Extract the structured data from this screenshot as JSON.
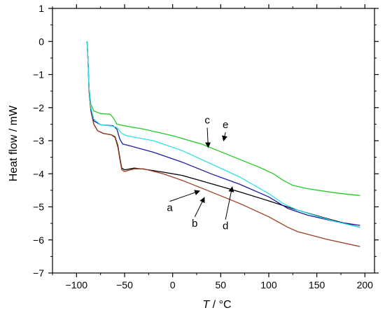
{
  "chart_data": {
    "type": "line",
    "title": "",
    "xlabel_var": "T",
    "xlabel_unit": " / °C",
    "ylabel": "Heat flow / mW",
    "xlim": [
      -125,
      210
    ],
    "ylim": [
      -7,
      1
    ],
    "x_ticks": [
      -100,
      -50,
      0,
      50,
      100,
      150,
      200
    ],
    "y_ticks": [
      -7,
      -6,
      -5,
      -4,
      -3,
      -2,
      -1,
      0,
      1
    ],
    "x_tick_labels": [
      "−100",
      "−50",
      "0",
      "50",
      "100",
      "150",
      "200"
    ],
    "y_tick_labels": [
      "−7",
      "−6",
      "−5",
      "−4",
      "−3",
      "−2",
      "−1",
      "0",
      "1"
    ],
    "grid": false,
    "series": [
      {
        "label": "a",
        "color": "#000000",
        "points": [
          [
            -89,
            0.0
          ],
          [
            -88,
            -0.6
          ],
          [
            -87,
            -1.5
          ],
          [
            -85,
            -2.1
          ],
          [
            -82,
            -2.5
          ],
          [
            -78,
            -2.7
          ],
          [
            -72,
            -2.78
          ],
          [
            -64,
            -2.82
          ],
          [
            -60,
            -2.88
          ],
          [
            -57,
            -3.15
          ],
          [
            -55,
            -3.5
          ],
          [
            -53,
            -3.83
          ],
          [
            -50,
            -3.88
          ],
          [
            -40,
            -3.83
          ],
          [
            -30,
            -3.86
          ],
          [
            -10,
            -3.95
          ],
          [
            10,
            -4.05
          ],
          [
            40,
            -4.3
          ],
          [
            70,
            -4.55
          ],
          [
            100,
            -4.82
          ],
          [
            130,
            -5.1
          ],
          [
            160,
            -5.35
          ],
          [
            195,
            -5.62
          ]
        ]
      },
      {
        "label": "b",
        "color": "#9b3d1e",
        "points": [
          [
            -89,
            0.0
          ],
          [
            -88,
            -0.6
          ],
          [
            -87,
            -1.5
          ],
          [
            -85,
            -2.1
          ],
          [
            -82,
            -2.5
          ],
          [
            -78,
            -2.7
          ],
          [
            -72,
            -2.78
          ],
          [
            -64,
            -2.82
          ],
          [
            -60,
            -2.9
          ],
          [
            -57,
            -3.2
          ],
          [
            -55,
            -3.55
          ],
          [
            -53,
            -3.88
          ],
          [
            -50,
            -3.93
          ],
          [
            -40,
            -3.85
          ],
          [
            -30,
            -3.85
          ],
          [
            -10,
            -4.0
          ],
          [
            10,
            -4.2
          ],
          [
            40,
            -4.55
          ],
          [
            70,
            -4.9
          ],
          [
            100,
            -5.3
          ],
          [
            120,
            -5.62
          ],
          [
            130,
            -5.75
          ],
          [
            160,
            -5.98
          ],
          [
            195,
            -6.2
          ]
        ]
      },
      {
        "label": "c",
        "color": "#22cc22",
        "points": [
          [
            -89,
            0.0
          ],
          [
            -88,
            -0.6
          ],
          [
            -87,
            -1.4
          ],
          [
            -85,
            -1.9
          ],
          [
            -82,
            -2.1
          ],
          [
            -75,
            -2.18
          ],
          [
            -65,
            -2.2
          ],
          [
            -62,
            -2.3
          ],
          [
            -58,
            -2.5
          ],
          [
            -50,
            -2.55
          ],
          [
            -30,
            -2.65
          ],
          [
            0,
            -2.85
          ],
          [
            30,
            -3.1
          ],
          [
            60,
            -3.45
          ],
          [
            90,
            -3.8
          ],
          [
            105,
            -4.0
          ],
          [
            115,
            -4.2
          ],
          [
            125,
            -4.35
          ],
          [
            140,
            -4.45
          ],
          [
            170,
            -4.58
          ],
          [
            195,
            -4.66
          ]
        ]
      },
      {
        "label": "d",
        "color": "#1a1aa8",
        "points": [
          [
            -89,
            0.0
          ],
          [
            -88,
            -0.6
          ],
          [
            -87,
            -1.4
          ],
          [
            -85,
            -2.05
          ],
          [
            -82,
            -2.4
          ],
          [
            -75,
            -2.52
          ],
          [
            -62,
            -2.55
          ],
          [
            -58,
            -2.65
          ],
          [
            -55,
            -2.95
          ],
          [
            -52,
            -3.1
          ],
          [
            -45,
            -3.15
          ],
          [
            -20,
            -3.35
          ],
          [
            10,
            -3.65
          ],
          [
            40,
            -4.0
          ],
          [
            70,
            -4.32
          ],
          [
            100,
            -4.7
          ],
          [
            120,
            -5.05
          ],
          [
            140,
            -5.25
          ],
          [
            170,
            -5.45
          ],
          [
            195,
            -5.56
          ]
        ]
      },
      {
        "label": "e",
        "color": "#33e0e8",
        "points": [
          [
            -89,
            0.0
          ],
          [
            -88,
            -0.6
          ],
          [
            -87,
            -1.4
          ],
          [
            -85,
            -2.0
          ],
          [
            -82,
            -2.35
          ],
          [
            -75,
            -2.52
          ],
          [
            -63,
            -2.56
          ],
          [
            -58,
            -2.6
          ],
          [
            -53,
            -2.78
          ],
          [
            -48,
            -2.85
          ],
          [
            -20,
            -3.0
          ],
          [
            10,
            -3.3
          ],
          [
            40,
            -3.7
          ],
          [
            70,
            -4.1
          ],
          [
            100,
            -4.6
          ],
          [
            115,
            -4.9
          ],
          [
            130,
            -5.1
          ],
          [
            150,
            -5.28
          ],
          [
            170,
            -5.45
          ],
          [
            195,
            -5.62
          ]
        ]
      }
    ],
    "annotations": [
      {
        "text": "a",
        "tip": [
          28,
          -4.52
        ],
        "label": [
          -3,
          -5.13
        ]
      },
      {
        "text": "b",
        "tip": [
          33,
          -4.72
        ],
        "label": [
          23,
          -5.6
        ]
      },
      {
        "text": "c",
        "tip": [
          37,
          -3.2
        ],
        "label": [
          36,
          -2.48
        ]
      },
      {
        "text": "d",
        "tip": [
          62,
          -4.4
        ],
        "label": [
          55,
          -5.68
        ]
      },
      {
        "text": "e",
        "tip": [
          53,
          -3.0
        ],
        "label": [
          55,
          -2.62
        ]
      }
    ]
  }
}
